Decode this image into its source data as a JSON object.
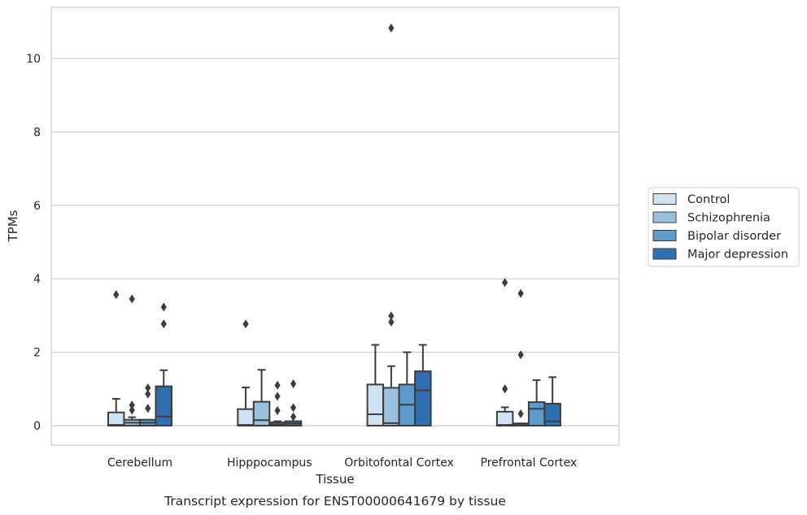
{
  "chart_data": {
    "type": "box",
    "caption": "Transcript expression for ENST00000641679 by tissue",
    "xlabel": "Tissue",
    "ylabel": "TPMs",
    "ylim": [
      -0.5,
      11.4
    ],
    "yticks": [
      0,
      2,
      4,
      6,
      8,
      10
    ],
    "grid": "horizontal",
    "legend_position": "right",
    "categories": [
      "Cerebellum",
      "Hipppocampus",
      "Orbitofontal Cortex",
      "Prefrontal Cortex"
    ],
    "series": [
      {
        "name": "Control",
        "color": "#d0e1f2",
        "boxes": [
          {
            "q1": 0.0,
            "median": 0.02,
            "q3": 0.36,
            "whisker_low": 0.0,
            "whisker_high": 0.73,
            "outliers": [
              3.57
            ]
          },
          {
            "q1": 0.0,
            "median": 0.02,
            "q3": 0.45,
            "whisker_low": 0.0,
            "whisker_high": 1.04,
            "outliers": [
              2.77
            ]
          },
          {
            "q1": 0.0,
            "median": 0.31,
            "q3": 1.12,
            "whisker_low": 0.0,
            "whisker_high": 2.2,
            "outliers": []
          },
          {
            "q1": 0.0,
            "median": 0.02,
            "q3": 0.38,
            "whisker_low": 0.0,
            "whisker_high": 0.5,
            "outliers": [
              1.0,
              3.9
            ]
          }
        ]
      },
      {
        "name": "Schizophrenia",
        "color": "#9ac1dd",
        "boxes": [
          {
            "q1": 0.0,
            "median": 0.08,
            "q3": 0.16,
            "whisker_low": 0.0,
            "whisker_high": 0.23,
            "outliers": [
              0.42,
              0.56,
              3.45
            ]
          },
          {
            "q1": 0.0,
            "median": 0.15,
            "q3": 0.65,
            "whisker_low": 0.0,
            "whisker_high": 1.52,
            "outliers": []
          },
          {
            "q1": 0.0,
            "median": 0.07,
            "q3": 1.03,
            "whisker_low": 0.0,
            "whisker_high": 1.62,
            "outliers": [
              2.82,
              2.99,
              10.83
            ]
          },
          {
            "q1": 0.0,
            "median": 0.02,
            "q3": 0.06,
            "whisker_low": 0.0,
            "whisker_high": 0.06,
            "outliers": [
              0.32,
              1.93,
              3.6
            ]
          }
        ]
      },
      {
        "name": "Bipolar disorder",
        "color": "#5d9bcb",
        "boxes": [
          {
            "q1": 0.0,
            "median": 0.08,
            "q3": 0.16,
            "whisker_low": 0.0,
            "whisker_high": 0.16,
            "outliers": [
              0.47,
              0.86,
              1.03
            ]
          },
          {
            "q1": 0.0,
            "median": 0.04,
            "q3": 0.09,
            "whisker_low": 0.0,
            "whisker_high": 0.12,
            "outliers": [
              0.41,
              0.8,
              1.1
            ]
          },
          {
            "q1": 0.0,
            "median": 0.57,
            "q3": 1.12,
            "whisker_low": 0.0,
            "whisker_high": 2.0,
            "outliers": []
          },
          {
            "q1": 0.0,
            "median": 0.46,
            "q3": 0.64,
            "whisker_low": 0.0,
            "whisker_high": 1.24,
            "outliers": []
          }
        ]
      },
      {
        "name": "Major depression",
        "color": "#2f6eb1",
        "boxes": [
          {
            "q1": 0.0,
            "median": 0.25,
            "q3": 1.07,
            "whisker_low": 0.0,
            "whisker_high": 1.51,
            "outliers": [
              2.77,
              3.23
            ]
          },
          {
            "q1": 0.0,
            "median": 0.06,
            "q3": 0.12,
            "whisker_low": 0.0,
            "whisker_high": 0.12,
            "outliers": [
              0.24,
              0.49,
              1.14
            ]
          },
          {
            "q1": 0.0,
            "median": 0.96,
            "q3": 1.48,
            "whisker_low": 0.0,
            "whisker_high": 2.2,
            "outliers": []
          },
          {
            "q1": 0.0,
            "median": 0.12,
            "q3": 0.6,
            "whisker_low": 0.0,
            "whisker_high": 1.32,
            "outliers": []
          }
        ]
      }
    ]
  }
}
